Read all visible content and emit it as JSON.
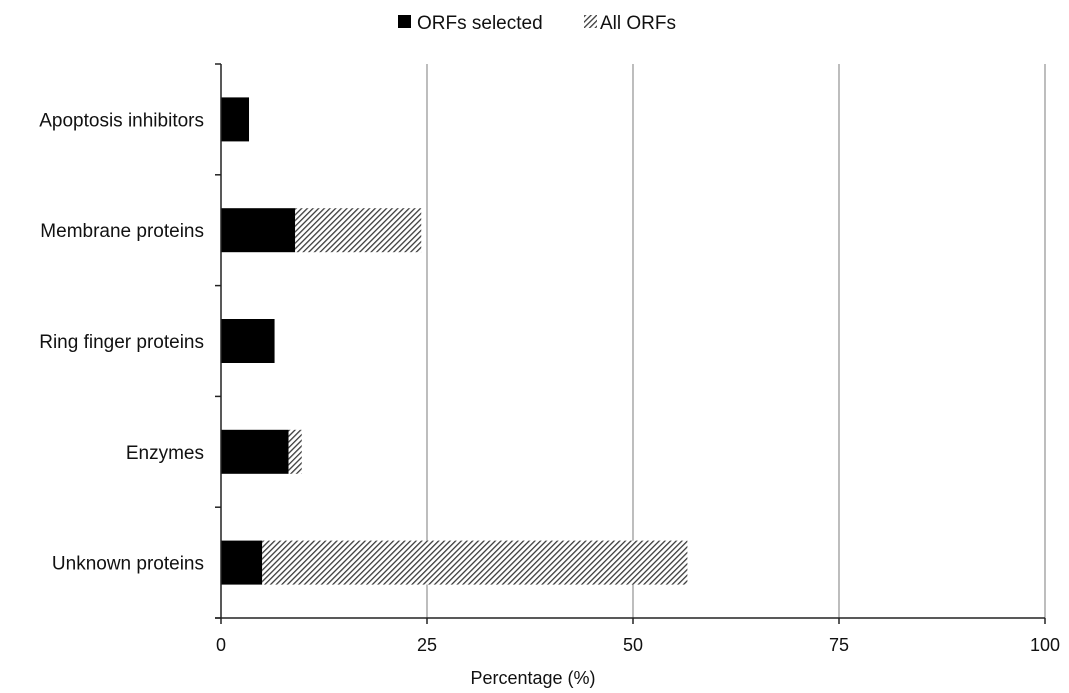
{
  "chart_data": {
    "type": "bar",
    "orientation": "horizontal",
    "stacked": true,
    "categories": [
      "Apoptosis inhibitors",
      "Membrane proteins",
      "Ring finger proteins",
      "Enzymes",
      "Unknown proteins"
    ],
    "series": [
      {
        "name": "ORFs selected",
        "values": [
          3.4,
          9,
          6.5,
          8.2,
          5
        ],
        "color": "#000000",
        "pattern": "solid"
      },
      {
        "name": "All ORFs",
        "values": [
          0,
          15.3,
          0,
          1.6,
          51.6
        ],
        "color": "#7a7a7a",
        "pattern": "hatched"
      }
    ],
    "xlabel": "Percentage (%)",
    "ylabel": "",
    "xlim": [
      0,
      100
    ],
    "xticks": [
      0,
      25,
      50,
      75,
      100
    ],
    "grid": "vertical",
    "legend_position": "top-center"
  }
}
